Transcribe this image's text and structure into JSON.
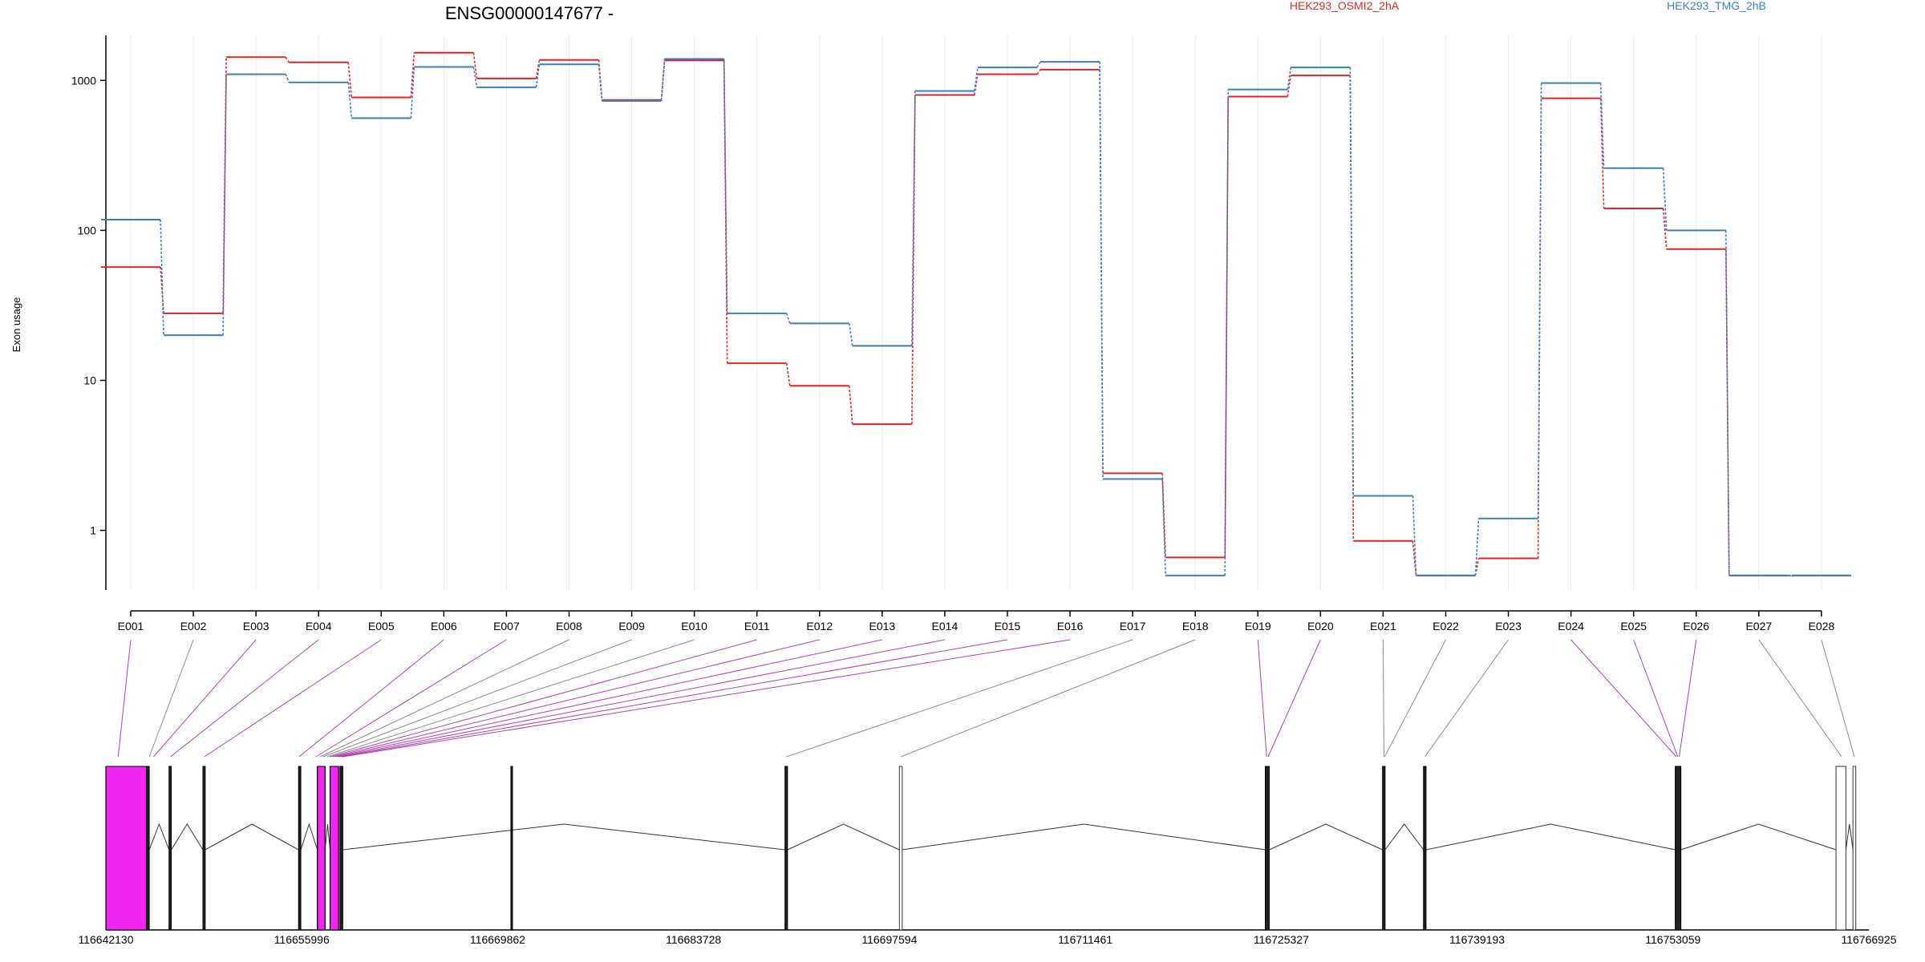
{
  "chart_data": {
    "type": "line",
    "title": "ENSG00000147677 -",
    "ylabel": "Exon usage",
    "yscale": "log",
    "ylim": [
      0.4,
      2000
    ],
    "yticks": [
      "1",
      "10",
      "100",
      "1000"
    ],
    "yticks_values": [
      1,
      10,
      100,
      1000
    ],
    "grid": "vertical",
    "legend_placement": "top",
    "categories": [
      "E001",
      "E002",
      "E003",
      "E004",
      "E005",
      "E006",
      "E007",
      "E008",
      "E009",
      "E010",
      "E011",
      "E012",
      "E013",
      "E014",
      "E015",
      "E016",
      "E017",
      "E018",
      "E019",
      "E020",
      "E021",
      "E022",
      "E023",
      "E024",
      "E025",
      "E026",
      "E027",
      "E028"
    ],
    "series": [
      {
        "name": "HEK293_OSMI2_2hA",
        "color": "#e0242b",
        "values": [
          57,
          28,
          1430,
          1320,
          770,
          1530,
          1030,
          1370,
          740,
          1360,
          13,
          9.2,
          5.1,
          800,
          1100,
          1180,
          2.4,
          0.66,
          780,
          1080,
          0.85,
          0.5,
          0.65,
          760,
          140,
          75,
          0.5,
          0.5
        ]
      },
      {
        "name": "HEK293_TMG_2hB",
        "color": "#3a7ebf",
        "values": [
          118,
          20,
          1100,
          970,
          560,
          1230,
          900,
          1280,
          730,
          1390,
          28,
          24,
          17,
          850,
          1220,
          1330,
          2.2,
          0.5,
          870,
          1220,
          1.7,
          0.5,
          1.2,
          960,
          260,
          100,
          0.5,
          0.5
        ]
      }
    ],
    "exons": {
      "xlim": [
        116642130,
        116766925
      ],
      "xticks": [
        "116642130",
        "116655996",
        "116669862",
        "116683728",
        "116697594",
        "116711461",
        "116725327",
        "116739193",
        "116753059",
        "116766925"
      ],
      "xticks_values": [
        116642130,
        116655996,
        116669862,
        116683728,
        116697594,
        116711461,
        116725327,
        116739193,
        116753059,
        116766925
      ],
      "highlight_color": "#f226f2",
      "blocks": [
        {
          "start": 116642130,
          "end": 116645000,
          "type": "highlight"
        },
        {
          "start": 116645010,
          "end": 116645200,
          "type": "dark"
        },
        {
          "start": 116646600,
          "end": 116646760,
          "type": "dark"
        },
        {
          "start": 116649000,
          "end": 116649160,
          "type": "dark"
        },
        {
          "start": 116655770,
          "end": 116655930,
          "type": "dark"
        },
        {
          "start": 116657100,
          "end": 116657650,
          "type": "highlight"
        },
        {
          "start": 116658000,
          "end": 116658600,
          "type": "highlight"
        },
        {
          "start": 116658700,
          "end": 116658900,
          "type": "dark"
        },
        {
          "start": 116670800,
          "end": 116670800,
          "type": "dark"
        },
        {
          "start": 116690200,
          "end": 116690380,
          "type": "dark"
        },
        {
          "start": 116698300,
          "end": 116698500,
          "type": "outline"
        },
        {
          "start": 116724200,
          "end": 116724480,
          "type": "dark"
        },
        {
          "start": 116732500,
          "end": 116732680,
          "type": "dark"
        },
        {
          "start": 116735400,
          "end": 116735580,
          "type": "dark"
        },
        {
          "start": 116753220,
          "end": 116753620,
          "type": "dark"
        },
        {
          "start": 116764600,
          "end": 116765300,
          "type": "outline"
        },
        {
          "start": 116765800,
          "end": 116766000,
          "type": "outline"
        }
      ],
      "links": [
        {
          "exon": "E001",
          "pos": 116643000,
          "highlight": true
        },
        {
          "exon": "E002",
          "pos": 116645200,
          "highlight": false
        },
        {
          "exon": "E003",
          "pos": 116645500,
          "highlight": true
        },
        {
          "exon": "E004",
          "pos": 116646700,
          "highlight": true
        },
        {
          "exon": "E005",
          "pos": 116649100,
          "highlight": true
        },
        {
          "exon": "E006",
          "pos": 116655800,
          "highlight": true
        },
        {
          "exon": "E007",
          "pos": 116657000,
          "highlight": true
        },
        {
          "exon": "E008",
          "pos": 116657300,
          "highlight": false
        },
        {
          "exon": "E009",
          "pos": 116657500,
          "highlight": false
        },
        {
          "exon": "E010",
          "pos": 116657800,
          "highlight": false
        },
        {
          "exon": "E011",
          "pos": 116658000,
          "highlight": true
        },
        {
          "exon": "E012",
          "pos": 116658200,
          "highlight": true
        },
        {
          "exon": "E013",
          "pos": 116658400,
          "highlight": true
        },
        {
          "exon": "E014",
          "pos": 116658600,
          "highlight": true
        },
        {
          "exon": "E015",
          "pos": 116658800,
          "highlight": true
        },
        {
          "exon": "E016",
          "pos": 116658900,
          "highlight": true
        },
        {
          "exon": "E017",
          "pos": 116690300,
          "highlight": false
        },
        {
          "exon": "E018",
          "pos": 116698400,
          "highlight": false
        },
        {
          "exon": "E019",
          "pos": 116724300,
          "highlight": true
        },
        {
          "exon": "E020",
          "pos": 116724400,
          "highlight": true
        },
        {
          "exon": "E021",
          "pos": 116732600,
          "highlight": false
        },
        {
          "exon": "E022",
          "pos": 116732650,
          "highlight": false
        },
        {
          "exon": "E023",
          "pos": 116735500,
          "highlight": false
        },
        {
          "exon": "E024",
          "pos": 116753300,
          "highlight": true
        },
        {
          "exon": "E025",
          "pos": 116753400,
          "highlight": true
        },
        {
          "exon": "E026",
          "pos": 116753500,
          "highlight": true
        },
        {
          "exon": "E027",
          "pos": 116765000,
          "highlight": false
        },
        {
          "exon": "E028",
          "pos": 116765900,
          "highlight": false
        }
      ],
      "introns": [
        [
          116645200,
          116646600
        ],
        [
          116646760,
          116649000
        ],
        [
          116649160,
          116655770
        ],
        [
          116655930,
          116657100
        ],
        [
          116657650,
          116658000
        ],
        [
          116658900,
          116690200
        ],
        [
          116690380,
          116698300
        ],
        [
          116698500,
          116724200
        ],
        [
          116724480,
          116732500
        ],
        [
          116732680,
          116735400
        ],
        [
          116735580,
          116753220
        ],
        [
          116753620,
          116764600
        ],
        [
          116765300,
          116765800
        ]
      ]
    }
  }
}
